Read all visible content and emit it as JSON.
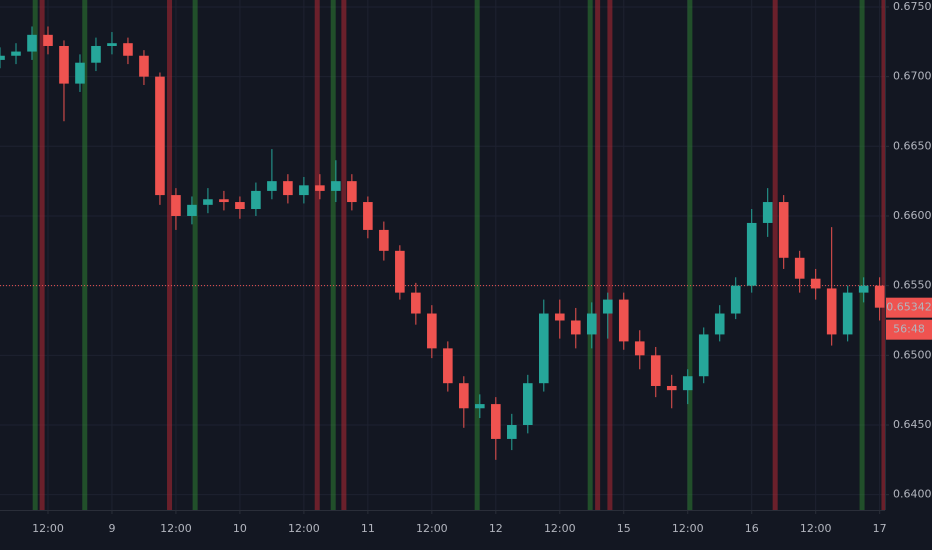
{
  "chart_data": {
    "type": "candlestick",
    "x": [
      -21,
      -18,
      -15,
      -12,
      -9,
      -6,
      -3,
      0,
      3,
      6,
      9,
      12,
      15,
      18,
      21,
      24,
      27,
      30,
      33,
      36,
      39,
      42,
      45,
      48,
      51,
      54,
      57,
      60,
      63,
      66,
      69,
      72,
      75,
      78,
      81,
      84,
      87,
      90,
      93,
      96,
      99,
      102,
      105,
      108,
      111,
      114,
      117,
      120,
      123,
      126,
      129,
      132,
      135,
      138,
      141,
      144
    ],
    "open": [
      0.6712,
      0.6715,
      0.6718,
      0.673,
      0.6722,
      0.6695,
      0.671,
      0.6722,
      0.6724,
      0.6715,
      0.67,
      0.6615,
      0.66,
      0.6608,
      0.6612,
      0.661,
      0.6605,
      0.6618,
      0.6625,
      0.6615,
      0.6622,
      0.6618,
      0.6625,
      0.661,
      0.659,
      0.6575,
      0.6545,
      0.653,
      0.6505,
      0.648,
      0.6462,
      0.6465,
      0.644,
      0.645,
      0.648,
      0.653,
      0.6525,
      0.6515,
      0.653,
      0.654,
      0.651,
      0.65,
      0.6478,
      0.6475,
      0.6485,
      0.6515,
      0.653,
      0.655,
      0.6595,
      0.661,
      0.657,
      0.6555,
      0.6548,
      0.6515,
      0.6545,
      0.655
    ],
    "high": [
      0.6721,
      0.6724,
      0.6736,
      0.6736,
      0.6726,
      0.6716,
      0.6728,
      0.6732,
      0.6728,
      0.6719,
      0.6703,
      0.662,
      0.6614,
      0.662,
      0.6618,
      0.6614,
      0.6624,
      0.6648,
      0.663,
      0.6628,
      0.663,
      0.664,
      0.663,
      0.6614,
      0.6596,
      0.6579,
      0.6552,
      0.6536,
      0.651,
      0.6485,
      0.6472,
      0.647,
      0.6458,
      0.6486,
      0.654,
      0.654,
      0.6534,
      0.6538,
      0.6545,
      0.6545,
      0.6518,
      0.6506,
      0.6486,
      0.649,
      0.652,
      0.6536,
      0.6556,
      0.6605,
      0.662,
      0.6615,
      0.6575,
      0.6562,
      0.6592,
      0.655,
      0.6556,
      0.6556
    ],
    "low": [
      0.6706,
      0.6709,
      0.6712,
      0.6716,
      0.6668,
      0.6689,
      0.6704,
      0.6716,
      0.6709,
      0.6694,
      0.6608,
      0.659,
      0.6594,
      0.6602,
      0.6604,
      0.6598,
      0.66,
      0.6612,
      0.6609,
      0.6609,
      0.6612,
      0.661,
      0.6604,
      0.6584,
      0.6568,
      0.654,
      0.6522,
      0.6498,
      0.6474,
      0.6448,
      0.6455,
      0.6425,
      0.6432,
      0.6444,
      0.6474,
      0.6512,
      0.6505,
      0.6505,
      0.6512,
      0.6504,
      0.649,
      0.647,
      0.6462,
      0.6465,
      0.648,
      0.651,
      0.6526,
      0.6545,
      0.6585,
      0.6562,
      0.6545,
      0.654,
      0.6507,
      0.651,
      0.6538,
      0.6525
    ],
    "close": [
      0.6715,
      0.6718,
      0.673,
      0.6722,
      0.6695,
      0.671,
      0.6722,
      0.6724,
      0.6715,
      0.67,
      0.6615,
      0.66,
      0.6608,
      0.6612,
      0.661,
      0.6605,
      0.6618,
      0.6625,
      0.6615,
      0.6622,
      0.6618,
      0.6625,
      0.661,
      0.659,
      0.6575,
      0.6545,
      0.653,
      0.6505,
      0.648,
      0.6462,
      0.6465,
      0.644,
      0.645,
      0.648,
      0.653,
      0.6525,
      0.6515,
      0.653,
      0.654,
      0.651,
      0.65,
      0.6478,
      0.6475,
      0.6485,
      0.6515,
      0.653,
      0.655,
      0.6595,
      0.661,
      0.657,
      0.6555,
      0.6548,
      0.6515,
      0.6545,
      0.655,
      0.65342
    ],
    "up_color": "#26a69a",
    "down_color": "#ef5350",
    "xlim": [
      -21,
      145
    ],
    "xticks": [
      {
        "value": -12,
        "label": "12:00"
      },
      {
        "value": 0,
        "label": "9"
      },
      {
        "value": 12,
        "label": "12:00"
      },
      {
        "value": 24,
        "label": "10"
      },
      {
        "value": 36,
        "label": "12:00"
      },
      {
        "value": 48,
        "label": "11"
      },
      {
        "value": 60,
        "label": "12:00"
      },
      {
        "value": 72,
        "label": "12"
      },
      {
        "value": 84,
        "label": "12:00"
      },
      {
        "value": 96,
        "label": "15"
      },
      {
        "value": 108,
        "label": "12:00"
      },
      {
        "value": 120,
        "label": "16"
      },
      {
        "value": 132,
        "label": "12:00"
      },
      {
        "value": 144,
        "label": "17"
      }
    ],
    "ylim": [
      0.6389,
      0.6755
    ],
    "yticks": [
      {
        "value": 0.675,
        "label": "0.67500"
      },
      {
        "value": 0.67,
        "label": "0.67000"
      },
      {
        "value": 0.665,
        "label": "0.66500"
      },
      {
        "value": 0.66,
        "label": "0.66000"
      },
      {
        "value": 0.655,
        "label": "0.65500"
      },
      {
        "value": 0.65,
        "label": "0.65000"
      },
      {
        "value": 0.645,
        "label": "0.64500"
      },
      {
        "value": 0.64,
        "label": "0.64000"
      }
    ],
    "grid": true,
    "hline": 0.655,
    "countdown": "56:48",
    "markers": [
      {
        "color": "#2e7d32",
        "x": [
          -14.4,
          -5.1,
          15.6,
          41.5,
          68.5,
          89.7,
          108.4,
          140.7
        ]
      },
      {
        "color": "#b22833",
        "x": [
          -13.1,
          10.8,
          38.5,
          43.5,
          91.1,
          93.4,
          124.4,
          144.8
        ]
      }
    ]
  }
}
